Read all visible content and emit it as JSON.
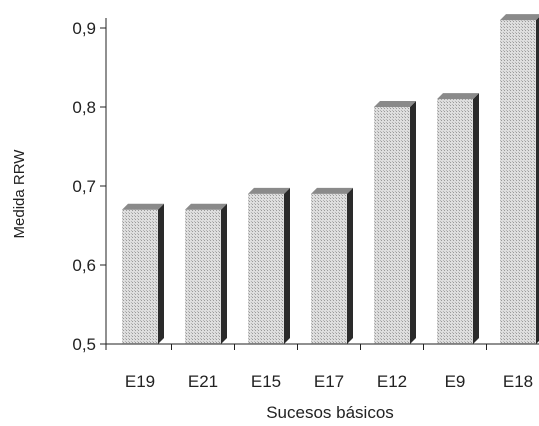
{
  "chart_data": {
    "type": "bar",
    "categories": [
      "E19",
      "E21",
      "E15",
      "E17",
      "E12",
      "E9",
      "E18"
    ],
    "values": [
      0.67,
      0.67,
      0.69,
      0.69,
      0.8,
      0.81,
      0.91
    ],
    "xlabel": "Sucesos básicos",
    "ylabel": "Medida RRW",
    "ylim": [
      0.5,
      0.92
    ],
    "yticks": [
      "0,5",
      "0,6",
      "0,7",
      "0,8",
      "0,9"
    ],
    "grid": false,
    "bar_color": "#d9d9d9",
    "bar_side_color": "#2a2a2a",
    "bar_top_color": "#8a8a8a"
  }
}
